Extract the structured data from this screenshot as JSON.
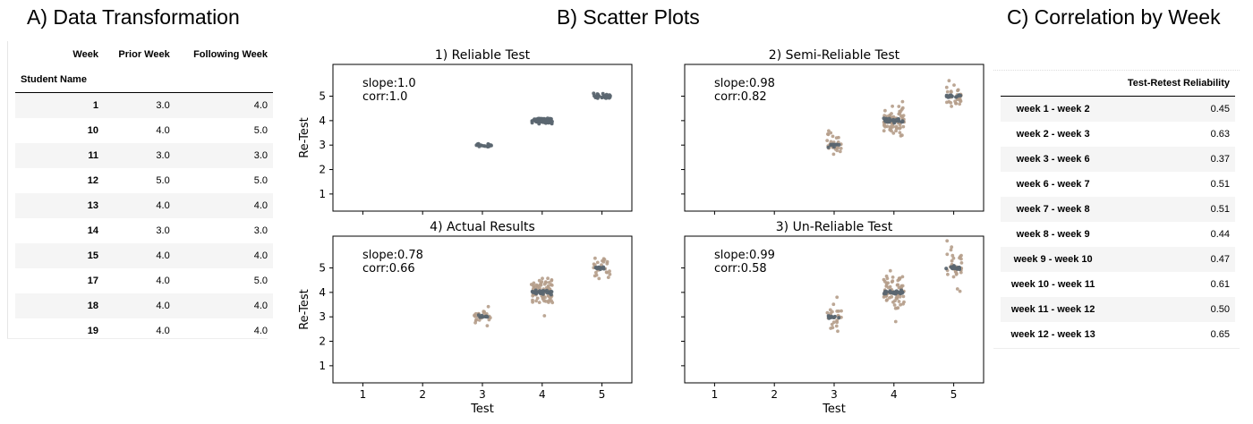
{
  "titles": {
    "a": "A) Data Transformation",
    "b": "B) Scatter Plots",
    "c": "C) Correlation by Week"
  },
  "table_a": {
    "columns_label": "Week",
    "columns": [
      "Prior Week",
      "Following Week"
    ],
    "index_label": "Student Name",
    "rows": [
      {
        "name": "1",
        "prior": "3.0",
        "following": "4.0"
      },
      {
        "name": "10",
        "prior": "4.0",
        "following": "5.0"
      },
      {
        "name": "11",
        "prior": "3.0",
        "following": "3.0"
      },
      {
        "name": "12",
        "prior": "5.0",
        "following": "5.0"
      },
      {
        "name": "13",
        "prior": "4.0",
        "following": "4.0"
      },
      {
        "name": "14",
        "prior": "3.0",
        "following": "3.0"
      },
      {
        "name": "15",
        "prior": "4.0",
        "following": "4.0"
      },
      {
        "name": "17",
        "prior": "4.0",
        "following": "5.0"
      },
      {
        "name": "18",
        "prior": "4.0",
        "following": "4.0"
      },
      {
        "name": "19",
        "prior": "4.0",
        "following": "4.0"
      }
    ]
  },
  "table_c": {
    "header": "Test-Retest Reliability",
    "rows": [
      {
        "label": "week 1 - week 2",
        "value": "0.45"
      },
      {
        "label": "week 2 - week 3",
        "value": "0.63"
      },
      {
        "label": "week 3 - week 6",
        "value": "0.37"
      },
      {
        "label": "week 6 - week 7",
        "value": "0.51"
      },
      {
        "label": "week 7 - week 8",
        "value": "0.51"
      },
      {
        "label": "week 8 - week 9",
        "value": "0.44"
      },
      {
        "label": "week 9 - week 10",
        "value": "0.47"
      },
      {
        "label": "week 10 - week 11",
        "value": "0.61"
      },
      {
        "label": "week 11 - week 12",
        "value": "0.50"
      },
      {
        "label": "week 12 - week 13",
        "value": "0.65"
      }
    ]
  },
  "colors": {
    "dark_points": "#5b6670",
    "tan_points": "#b59d8a",
    "axis": "#000000"
  },
  "chart_data": [
    {
      "type": "scatter",
      "title": "1) Reliable Test",
      "xlabel": "",
      "ylabel": "Re-Test",
      "xlim": [
        0.5,
        5.5
      ],
      "ylim": [
        0.3,
        6.3
      ],
      "x_ticks": [],
      "y_ticks": [
        "1",
        "2",
        "3",
        "4",
        "5"
      ],
      "annotation": [
        "slope:1.0",
        "corr:1.0"
      ],
      "clusters": [
        {
          "color": "dark",
          "x": 3,
          "y": 3,
          "n": 18,
          "spread_x": 0.15,
          "spread_y": 0.07
        },
        {
          "color": "dark",
          "x": 4,
          "y": 4,
          "n": 60,
          "spread_x": 0.17,
          "spread_y": 0.09
        },
        {
          "color": "dark",
          "x": 5,
          "y": 5,
          "n": 28,
          "spread_x": 0.14,
          "spread_y": 0.09
        }
      ]
    },
    {
      "type": "scatter",
      "title": "2) Semi-Reliable Test",
      "xlabel": "",
      "ylabel": "",
      "xlim": [
        0.5,
        5.5
      ],
      "ylim": [
        0.3,
        6.3
      ],
      "x_ticks": [],
      "y_ticks": [],
      "annotation": [
        "slope:0.98",
        "corr:0.82"
      ],
      "clusters": [
        {
          "color": "tan",
          "x": 3,
          "y": 3,
          "n": 24,
          "spread_x": 0.12,
          "spread_y": 0.5
        },
        {
          "color": "tan",
          "x": 4,
          "y": 4,
          "n": 70,
          "spread_x": 0.17,
          "spread_y": 0.45
        },
        {
          "color": "tan",
          "x": 5,
          "y": 5,
          "n": 30,
          "spread_x": 0.14,
          "spread_y": 0.4
        },
        {
          "color": "dark",
          "x": 3,
          "y": 3,
          "n": 10,
          "spread_x": 0.1,
          "spread_y": 0.05
        },
        {
          "color": "dark",
          "x": 4,
          "y": 4,
          "n": 30,
          "spread_x": 0.17,
          "spread_y": 0.06
        },
        {
          "color": "dark",
          "x": 5,
          "y": 5,
          "n": 14,
          "spread_x": 0.13,
          "spread_y": 0.06
        }
      ]
    },
    {
      "type": "scatter",
      "title": "4) Actual Results",
      "xlabel": "Test",
      "ylabel": "Re-Test",
      "xlim": [
        0.5,
        5.5
      ],
      "ylim": [
        0.3,
        6.3
      ],
      "x_ticks": [
        "1",
        "2",
        "3",
        "4",
        "5"
      ],
      "y_ticks": [
        "1",
        "2",
        "3",
        "4",
        "5"
      ],
      "annotation": [
        "slope:0.78",
        "corr:0.66"
      ],
      "clusters": [
        {
          "color": "tan",
          "x": 3,
          "y": 3,
          "n": 24,
          "spread_x": 0.14,
          "spread_y": 0.25
        },
        {
          "color": "tan",
          "x": 4,
          "y": 4,
          "n": 70,
          "spread_x": 0.18,
          "spread_y": 0.55
        },
        {
          "color": "tan",
          "x": 5,
          "y": 5,
          "n": 24,
          "spread_x": 0.14,
          "spread_y": 0.3
        },
        {
          "color": "dark",
          "x": 3,
          "y": 3,
          "n": 10,
          "spread_x": 0.1,
          "spread_y": 0.05
        },
        {
          "color": "dark",
          "x": 4,
          "y": 4,
          "n": 30,
          "spread_x": 0.17,
          "spread_y": 0.06
        },
        {
          "color": "dark",
          "x": 5,
          "y": 5,
          "n": 12,
          "spread_x": 0.12,
          "spread_y": 0.05
        }
      ]
    },
    {
      "type": "scatter",
      "title": "3) Un-Reliable Test",
      "xlabel": "Test",
      "ylabel": "",
      "xlim": [
        0.5,
        5.5
      ],
      "ylim": [
        0.3,
        6.3
      ],
      "x_ticks": [
        "1",
        "2",
        "3",
        "4",
        "5"
      ],
      "y_ticks": [],
      "annotation": [
        "slope:0.99",
        "corr:0.58"
      ],
      "clusters": [
        {
          "color": "tan",
          "x": 3,
          "y": 3,
          "n": 26,
          "spread_x": 0.12,
          "spread_y": 0.7
        },
        {
          "color": "tan",
          "x": 4,
          "y": 4,
          "n": 70,
          "spread_x": 0.17,
          "spread_y": 0.7
        },
        {
          "color": "tan",
          "x": 5,
          "y": 5,
          "n": 30,
          "spread_x": 0.14,
          "spread_y": 0.6
        },
        {
          "color": "dark",
          "x": 3,
          "y": 3,
          "n": 10,
          "spread_x": 0.1,
          "spread_y": 0.05
        },
        {
          "color": "dark",
          "x": 4,
          "y": 4,
          "n": 30,
          "spread_x": 0.17,
          "spread_y": 0.06
        },
        {
          "color": "dark",
          "x": 5,
          "y": 5,
          "n": 14,
          "spread_x": 0.13,
          "spread_y": 0.06
        }
      ]
    }
  ]
}
